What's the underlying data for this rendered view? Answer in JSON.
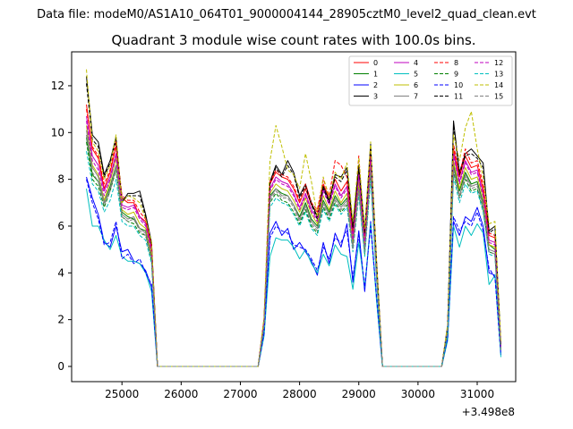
{
  "chart_data": {
    "type": "line",
    "suptitle": "Data file: modeM0/AS1A10_064T01_9000004144_28905cztM0_level2_quad_clean.evt",
    "title": "Quadrant 3 module wise count rates with 100.0s bins.",
    "xlabel": "",
    "ylabel": "",
    "x_offset_label": "+3.498e8",
    "xlim": [
      24150,
      31650
    ],
    "ylim": [
      -0.65,
      13.45
    ],
    "xticks": [
      25000,
      26000,
      27000,
      28000,
      29000,
      30000,
      31000
    ],
    "xtick_labels": [
      "25000",
      "26000",
      "27000",
      "28000",
      "29000",
      "30000",
      "31000"
    ],
    "yticks": [
      0,
      2,
      4,
      6,
      8,
      10,
      12
    ],
    "ytick_labels": [
      "0",
      "2",
      "4",
      "6",
      "8",
      "10",
      "12"
    ],
    "grid": false,
    "legend_position": "top-right",
    "legend_columns": 4,
    "x": [
      24400,
      24500,
      24600,
      24700,
      24800,
      24900,
      25000,
      25100,
      25200,
      25300,
      25400,
      25500,
      25600,
      25700,
      25800,
      25900,
      26000,
      26100,
      26200,
      26300,
      26400,
      26500,
      26600,
      26700,
      26800,
      26900,
      27000,
      27100,
      27200,
      27300,
      27400,
      27500,
      27600,
      27700,
      27800,
      27900,
      28000,
      28100,
      28200,
      28300,
      28400,
      28500,
      28600,
      28700,
      28800,
      28900,
      29000,
      29100,
      29200,
      29300,
      29400,
      29500,
      29600,
      29700,
      29800,
      29900,
      30000,
      30100,
      30200,
      30300,
      30400,
      30500,
      30600,
      30700,
      30800,
      30900,
      31000,
      31100,
      31200,
      31300,
      31400
    ],
    "series": [
      {
        "name": "0",
        "color": "#ff0000",
        "dash": "solid",
        "values": [
          11.2,
          9.3,
          8.9,
          7.6,
          8.3,
          9.4,
          7.2,
          7.0,
          7.0,
          6.4,
          6.2,
          5.1,
          0,
          0,
          0,
          0,
          0,
          0,
          0,
          0,
          0,
          0,
          0,
          0,
          0,
          0,
          0,
          0,
          0,
          0,
          2.0,
          7.8,
          8.3,
          8.1,
          8.0,
          7.6,
          7.0,
          7.6,
          6.9,
          6.6,
          7.8,
          7.2,
          8.0,
          7.5,
          7.9,
          5.7,
          8.4,
          5.5,
          9.2,
          4.3,
          0,
          0,
          0,
          0,
          0,
          0,
          0,
          0,
          0,
          0,
          0,
          1.6,
          9.3,
          8.1,
          9.0,
          8.5,
          8.6,
          7.6,
          5.6,
          5.5,
          0.8
        ]
      },
      {
        "name": "1",
        "color": "#008000",
        "dash": "solid",
        "values": [
          9.8,
          8.2,
          7.9,
          7.0,
          7.7,
          8.6,
          6.6,
          6.4,
          6.3,
          5.9,
          5.8,
          4.7,
          0,
          0,
          0,
          0,
          0,
          0,
          0,
          0,
          0,
          0,
          0,
          0,
          0,
          0,
          0,
          0,
          0,
          0,
          1.8,
          7.3,
          7.6,
          7.4,
          7.3,
          6.9,
          6.4,
          7.0,
          6.3,
          6.0,
          7.1,
          6.6,
          7.3,
          6.9,
          7.2,
          5.2,
          7.8,
          5.0,
          8.5,
          3.9,
          0,
          0,
          0,
          0,
          0,
          0,
          0,
          0,
          0,
          0,
          0,
          1.5,
          8.6,
          7.5,
          8.3,
          7.8,
          7.9,
          7.0,
          5.2,
          5.0,
          0.7
        ]
      },
      {
        "name": "2",
        "color": "#0000ff",
        "dash": "solid",
        "values": [
          8.1,
          7.2,
          6.5,
          5.3,
          5.1,
          6.0,
          4.9,
          5.0,
          4.5,
          4.4,
          4.1,
          3.4,
          0,
          0,
          0,
          0,
          0,
          0,
          0,
          0,
          0,
          0,
          0,
          0,
          0,
          0,
          0,
          0,
          0,
          0,
          1.4,
          5.7,
          6.2,
          5.6,
          5.9,
          5.0,
          5.3,
          4.9,
          4.5,
          3.9,
          5.3,
          4.4,
          5.7,
          5.1,
          6.1,
          3.6,
          5.8,
          3.2,
          6.2,
          2.9,
          0,
          0,
          0,
          0,
          0,
          0,
          0,
          0,
          0,
          0,
          0,
          1.2,
          6.2,
          5.6,
          6.4,
          6.2,
          6.8,
          6.0,
          4.0,
          3.9,
          0.5
        ]
      },
      {
        "name": "3",
        "color": "#000000",
        "dash": "solid",
        "values": [
          12.4,
          9.9,
          9.6,
          8.2,
          8.8,
          9.8,
          7.0,
          7.4,
          7.4,
          7.5,
          6.5,
          5.3,
          0,
          0,
          0,
          0,
          0,
          0,
          0,
          0,
          0,
          0,
          0,
          0,
          0,
          0,
          0,
          0,
          0,
          0,
          2.0,
          7.9,
          8.6,
          8.2,
          8.8,
          8.3,
          7.3,
          7.8,
          7.0,
          6.4,
          7.7,
          7.1,
          8.2,
          8.1,
          8.5,
          6.0,
          8.6,
          5.8,
          9.5,
          4.5,
          0,
          0,
          0,
          0,
          0,
          0,
          0,
          0,
          0,
          0,
          0,
          1.7,
          10.5,
          8.3,
          9.1,
          9.3,
          9.0,
          8.7,
          5.8,
          6.0,
          0.9
        ]
      },
      {
        "name": "4",
        "color": "#bf00bf",
        "dash": "solid",
        "values": [
          10.7,
          9.0,
          8.6,
          7.5,
          8.1,
          9.1,
          6.9,
          6.8,
          6.9,
          6.4,
          6.1,
          5.0,
          0,
          0,
          0,
          0,
          0,
          0,
          0,
          0,
          0,
          0,
          0,
          0,
          0,
          0,
          0,
          0,
          0,
          0,
          1.9,
          7.6,
          8.1,
          7.9,
          7.8,
          7.4,
          6.8,
          7.4,
          6.7,
          6.3,
          7.6,
          7.0,
          7.8,
          7.3,
          7.7,
          5.5,
          8.2,
          5.3,
          9.0,
          4.2,
          0,
          0,
          0,
          0,
          0,
          0,
          0,
          0,
          0,
          0,
          0,
          1.6,
          9.1,
          7.9,
          8.8,
          8.3,
          8.4,
          7.4,
          5.4,
          5.3,
          0.8
        ]
      },
      {
        "name": "5",
        "color": "#00bfbf",
        "dash": "solid",
        "values": [
          7.6,
          6.0,
          6.0,
          5.4,
          5.0,
          5.6,
          4.7,
          4.5,
          4.5,
          4.4,
          4.0,
          3.2,
          0,
          0,
          0,
          0,
          0,
          0,
          0,
          0,
          0,
          0,
          0,
          0,
          0,
          0,
          0,
          0,
          0,
          0,
          1.3,
          4.7,
          5.5,
          5.4,
          5.4,
          5.1,
          4.6,
          5.0,
          4.4,
          4.0,
          4.8,
          4.3,
          5.2,
          4.8,
          4.7,
          3.3,
          5.3,
          3.4,
          6.1,
          2.8,
          0,
          0,
          0,
          0,
          0,
          0,
          0,
          0,
          0,
          0,
          0,
          1.1,
          6.0,
          5.1,
          6.0,
          5.6,
          6.1,
          5.7,
          3.5,
          3.9,
          0.4
        ]
      },
      {
        "name": "6",
        "color": "#bfbf00",
        "dash": "solid",
        "values": [
          10.3,
          8.6,
          8.2,
          7.1,
          7.9,
          8.9,
          6.7,
          6.5,
          6.6,
          6.1,
          5.9,
          4.8,
          0,
          0,
          0,
          0,
          0,
          0,
          0,
          0,
          0,
          0,
          0,
          0,
          0,
          0,
          0,
          0,
          0,
          0,
          1.8,
          7.4,
          7.8,
          7.6,
          7.5,
          7.1,
          6.6,
          7.2,
          6.5,
          6.1,
          7.3,
          6.7,
          7.5,
          7.0,
          7.4,
          5.3,
          7.9,
          5.1,
          8.7,
          4.0,
          0,
          0,
          0,
          0,
          0,
          0,
          0,
          0,
          0,
          0,
          0,
          1.5,
          8.8,
          7.6,
          8.5,
          8.0,
          8.1,
          7.2,
          5.2,
          5.1,
          0.7
        ]
      },
      {
        "name": "7",
        "color": "#808080",
        "dash": "solid",
        "values": [
          10.1,
          8.5,
          8.1,
          7.0,
          7.6,
          8.6,
          6.5,
          6.3,
          6.4,
          5.9,
          5.7,
          4.6,
          0,
          0,
          0,
          0,
          0,
          0,
          0,
          0,
          0,
          0,
          0,
          0,
          0,
          0,
          0,
          0,
          0,
          0,
          1.8,
          7.2,
          7.6,
          7.3,
          7.3,
          6.9,
          6.3,
          6.9,
          6.2,
          5.9,
          7.0,
          6.5,
          7.2,
          6.8,
          7.1,
          5.1,
          7.6,
          4.9,
          8.4,
          3.9,
          0,
          0,
          0,
          0,
          0,
          0,
          0,
          0,
          0,
          0,
          0,
          1.5,
          8.5,
          7.3,
          8.2,
          7.7,
          7.8,
          6.9,
          5.0,
          4.9,
          0.7
        ]
      },
      {
        "name": "8",
        "color": "#ff0000",
        "dash": "dashed",
        "values": [
          11.0,
          9.4,
          9.0,
          7.8,
          8.4,
          9.6,
          7.3,
          7.1,
          7.1,
          6.6,
          6.3,
          5.2,
          0,
          0,
          0,
          0,
          0,
          0,
          0,
          0,
          0,
          0,
          0,
          0,
          0,
          0,
          0,
          0,
          0,
          0,
          2.0,
          7.9,
          8.4,
          8.2,
          8.1,
          7.7,
          7.1,
          7.8,
          7.0,
          6.7,
          8.0,
          7.3,
          8.8,
          8.6,
          8.1,
          5.8,
          9.0,
          5.6,
          9.3,
          4.4,
          0,
          0,
          0,
          0,
          0,
          0,
          0,
          0,
          0,
          0,
          0,
          1.7,
          9.5,
          8.2,
          9.3,
          8.7,
          8.8,
          7.8,
          5.7,
          5.6,
          0.8
        ]
      },
      {
        "name": "9",
        "color": "#008000",
        "dash": "dashed",
        "values": [
          9.6,
          8.0,
          7.7,
          6.8,
          7.5,
          8.4,
          6.4,
          6.2,
          6.1,
          5.7,
          5.6,
          4.5,
          0,
          0,
          0,
          0,
          0,
          0,
          0,
          0,
          0,
          0,
          0,
          0,
          0,
          0,
          0,
          0,
          0,
          0,
          1.7,
          7.0,
          7.4,
          7.1,
          7.0,
          6.6,
          6.1,
          6.7,
          6.0,
          5.7,
          6.8,
          6.3,
          7.0,
          6.6,
          6.9,
          5.0,
          7.5,
          4.8,
          8.2,
          3.8,
          0,
          0,
          0,
          0,
          0,
          0,
          0,
          0,
          0,
          0,
          0,
          1.4,
          8.3,
          7.2,
          8.0,
          7.5,
          7.6,
          6.7,
          4.9,
          4.8,
          0.7
        ]
      },
      {
        "name": "10",
        "color": "#0000ff",
        "dash": "dashed",
        "values": [
          8.0,
          7.0,
          6.3,
          5.2,
          5.3,
          6.2,
          4.6,
          4.8,
          4.4,
          4.6,
          4.0,
          3.5,
          0,
          0,
          0,
          0,
          0,
          0,
          0,
          0,
          0,
          0,
          0,
          0,
          0,
          0,
          0,
          0,
          0,
          0,
          1.4,
          5.5,
          6.0,
          5.8,
          5.7,
          5.2,
          5.1,
          5.0,
          4.6,
          4.1,
          5.1,
          4.6,
          5.5,
          5.3,
          5.8,
          3.8,
          5.6,
          3.4,
          6.0,
          3.0,
          0,
          0,
          0,
          0,
          0,
          0,
          0,
          0,
          0,
          0,
          0,
          1.2,
          6.4,
          5.8,
          6.2,
          6.0,
          6.6,
          5.8,
          4.2,
          3.8,
          0.5
        ]
      },
      {
        "name": "11",
        "color": "#000000",
        "dash": "dashed",
        "values": [
          12.1,
          9.7,
          9.4,
          8.1,
          8.7,
          9.7,
          7.1,
          7.3,
          7.3,
          7.3,
          6.4,
          5.2,
          0,
          0,
          0,
          0,
          0,
          0,
          0,
          0,
          0,
          0,
          0,
          0,
          0,
          0,
          0,
          0,
          0,
          0,
          2.0,
          7.8,
          8.5,
          8.1,
          8.6,
          8.2,
          7.2,
          7.7,
          6.9,
          6.3,
          7.6,
          7.0,
          8.1,
          7.9,
          8.4,
          5.9,
          8.5,
          5.7,
          9.4,
          4.4,
          0,
          0,
          0,
          0,
          0,
          0,
          0,
          0,
          0,
          0,
          0,
          1.7,
          10.3,
          8.2,
          9.0,
          9.1,
          8.9,
          8.5,
          5.7,
          5.9,
          0.9
        ]
      },
      {
        "name": "12",
        "color": "#bf00bf",
        "dash": "dashed",
        "values": [
          10.5,
          8.8,
          8.4,
          7.3,
          8.0,
          9.0,
          6.8,
          6.7,
          6.8,
          6.3,
          6.0,
          4.9,
          0,
          0,
          0,
          0,
          0,
          0,
          0,
          0,
          0,
          0,
          0,
          0,
          0,
          0,
          0,
          0,
          0,
          0,
          1.9,
          7.5,
          8.0,
          7.8,
          7.7,
          7.3,
          6.7,
          7.3,
          6.6,
          6.2,
          7.5,
          6.9,
          7.7,
          7.2,
          7.6,
          5.4,
          8.1,
          5.2,
          8.9,
          4.1,
          0,
          0,
          0,
          0,
          0,
          0,
          0,
          0,
          0,
          0,
          0,
          1.6,
          9.0,
          7.8,
          8.7,
          8.2,
          8.3,
          7.3,
          5.3,
          5.2,
          0.8
        ]
      },
      {
        "name": "13",
        "color": "#00bfbf",
        "dash": "dashed",
        "values": [
          9.2,
          7.8,
          7.5,
          6.6,
          7.1,
          8.0,
          6.2,
          6.0,
          6.0,
          5.6,
          5.4,
          4.4,
          0,
          0,
          0,
          0,
          0,
          0,
          0,
          0,
          0,
          0,
          0,
          0,
          0,
          0,
          0,
          0,
          0,
          0,
          1.7,
          6.8,
          7.2,
          7.0,
          6.9,
          6.5,
          6.0,
          6.6,
          5.9,
          5.6,
          6.7,
          6.2,
          6.9,
          6.5,
          6.8,
          4.9,
          7.3,
          4.7,
          8.0,
          3.7,
          0,
          0,
          0,
          0,
          0,
          0,
          0,
          0,
          0,
          0,
          0,
          1.4,
          8.1,
          7.0,
          7.8,
          7.4,
          7.5,
          6.6,
          4.8,
          4.7,
          0.6
        ]
      },
      {
        "name": "14",
        "color": "#bfbf00",
        "dash": "dashed",
        "values": [
          12.7,
          9.6,
          9.2,
          8.0,
          8.6,
          9.9,
          7.0,
          7.3,
          7.2,
          7.0,
          6.3,
          5.3,
          0,
          0,
          0,
          0,
          0,
          0,
          0,
          0,
          0,
          0,
          0,
          0,
          0,
          0,
          0,
          0,
          0,
          0,
          2.1,
          8.8,
          10.3,
          9.4,
          8.4,
          8.2,
          7.6,
          9.1,
          7.9,
          6.4,
          8.1,
          7.2,
          8.3,
          8.0,
          8.7,
          6.2,
          8.9,
          5.9,
          9.6,
          4.5,
          0,
          0,
          0,
          0,
          0,
          0,
          0,
          0,
          0,
          0,
          0,
          1.8,
          9.9,
          8.8,
          10.2,
          10.9,
          9.3,
          8.1,
          6.1,
          6.2,
          1.0
        ]
      },
      {
        "name": "15",
        "color": "#808080",
        "dash": "dashed",
        "values": [
          9.9,
          8.3,
          7.9,
          6.9,
          7.5,
          8.5,
          6.4,
          6.2,
          6.3,
          5.8,
          5.6,
          4.6,
          0,
          0,
          0,
          0,
          0,
          0,
          0,
          0,
          0,
          0,
          0,
          0,
          0,
          0,
          0,
          0,
          0,
          0,
          1.8,
          7.1,
          7.5,
          7.2,
          7.2,
          6.8,
          6.2,
          6.8,
          6.1,
          5.8,
          6.9,
          6.4,
          7.1,
          6.7,
          7.0,
          5.0,
          7.5,
          4.9,
          8.3,
          3.8,
          0,
          0,
          0,
          0,
          0,
          0,
          0,
          0,
          0,
          0,
          0,
          1.5,
          8.4,
          7.2,
          8.1,
          7.6,
          7.7,
          6.8,
          4.9,
          4.8,
          0.7
        ]
      }
    ]
  }
}
